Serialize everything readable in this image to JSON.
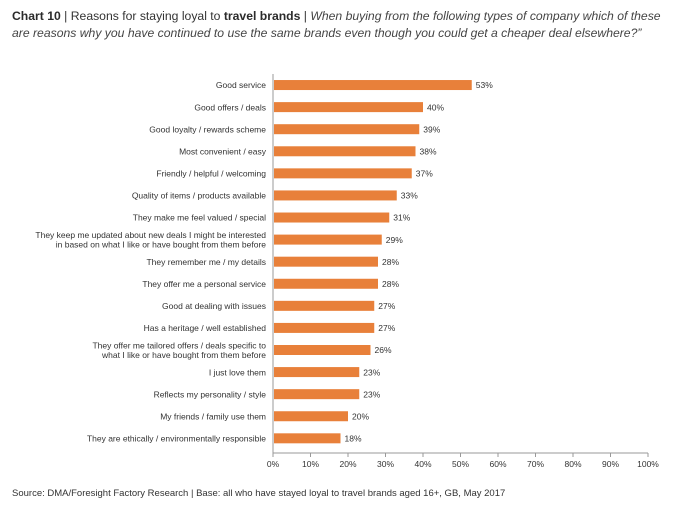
{
  "header": {
    "chart_number": "Chart 10",
    "separator": "|",
    "title_prefix": "Reasons for staying loyal to",
    "title_subject": "travel brands",
    "question": "When buying from the following types of company which of these are reasons why you have continued to use the same brands even though you could get a cheaper deal elsewhere?”"
  },
  "source": "Source: DMA/Foresight Factory Research | Base: all who have stayed loyal to travel brands aged 16+, GB, May 2017",
  "colors": {
    "bar": "#E8803A",
    "text": "#333333",
    "axis": "#999999"
  },
  "chart_data": {
    "type": "bar",
    "orientation": "horizontal",
    "categories": [
      [
        "Good service"
      ],
      [
        "Good offers / deals"
      ],
      [
        "Good loyalty / rewards scheme"
      ],
      [
        "Most convenient / easy"
      ],
      [
        "Friendly / helpful / welcoming"
      ],
      [
        "Quality of items / products available"
      ],
      [
        "They make me feel valued / special"
      ],
      [
        "They keep me updated about new deals I might be interested",
        "in based on what I like or have bought from them before"
      ],
      [
        "They remember me / my details"
      ],
      [
        "They offer me a personal service"
      ],
      [
        "Good at dealing with issues"
      ],
      [
        "Has a heritage / well established"
      ],
      [
        "They offer me tailored offers / deals specific to",
        "what I like or have bought from them before"
      ],
      [
        "I just love them"
      ],
      [
        "Reflects my personality / style"
      ],
      [
        "My friends / family use them"
      ],
      [
        "They are ethically / environmentally responsible"
      ]
    ],
    "values": [
      53,
      40,
      39,
      38,
      37,
      33,
      31,
      29,
      28,
      28,
      27,
      27,
      26,
      23,
      23,
      20,
      18
    ],
    "value_labels": [
      "53%",
      "40%",
      "39%",
      "38%",
      "37%",
      "33%",
      "31%",
      "29%",
      "28%",
      "28%",
      "27%",
      "27%",
      "26%",
      "23%",
      "23%",
      "20%",
      "18%"
    ],
    "xlim": [
      0,
      100
    ],
    "xticks": [
      0,
      10,
      20,
      30,
      40,
      50,
      60,
      70,
      80,
      90,
      100
    ],
    "xtick_labels": [
      "0%",
      "10%",
      "20%",
      "30%",
      "40%",
      "50%",
      "60%",
      "70%",
      "80%",
      "90%",
      "100%"
    ],
    "grid": false,
    "legend": "none"
  }
}
